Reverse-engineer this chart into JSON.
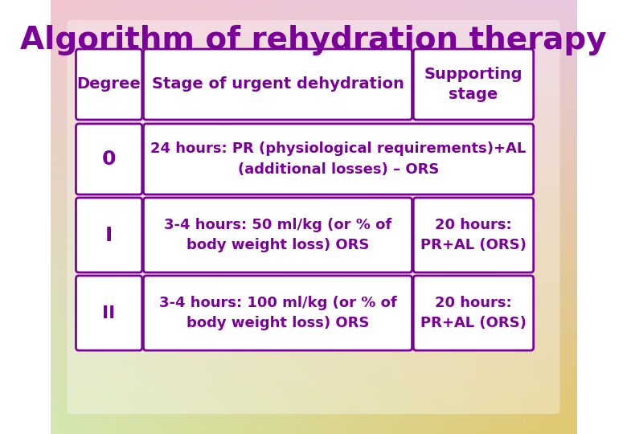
{
  "title": "Algorithm of rehydration therapy",
  "title_color": "#7B0099",
  "title_fontsize": 28,
  "background_gradient": {
    "top_left": "#F2C6D0",
    "top_right": "#E8C8E0",
    "bottom_left": "#D4E8B0",
    "bottom_right": "#E0C870"
  },
  "box_fill": "#FFFFFF",
  "box_edge": "#7B0099",
  "text_color": "#7B0099",
  "header_row": {
    "col1": "Degree",
    "col2": "Stage of urgent dehydration",
    "col3": "Supporting\nstage"
  },
  "rows": [
    {
      "col1": "0",
      "col2": "24 hours: PR (physiological requirements)+AL\n(additional losses) – ORS",
      "col2_span": true
    },
    {
      "col1": "I",
      "col2": "3-4 hours: 50 ml/kg (or % of\nbody weight loss) ORS",
      "col3": "20 hours:\nPR+AL (ORS)",
      "col2_span": false
    },
    {
      "col1": "II",
      "col2": "3-4 hours: 100 ml/kg (or % of\nbody weight loss) ORS",
      "col3": "20 hours:\nPR+AL (ORS)",
      "col2_span": false
    }
  ],
  "underline_words": [
    "24 hours:",
    "3-4 hours:",
    "20 hours:"
  ]
}
